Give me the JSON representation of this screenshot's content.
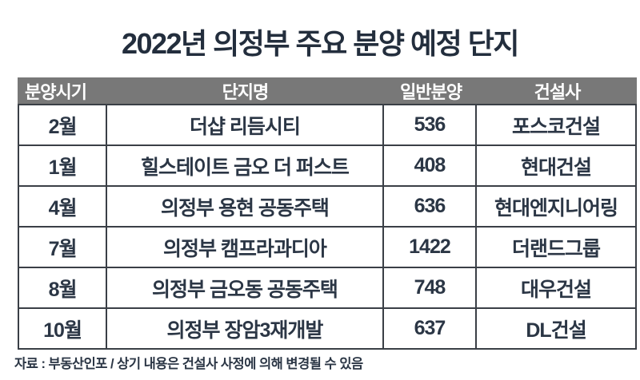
{
  "chart_data": {
    "type": "table",
    "title": "2022년 의정부 주요 분양 예정 단지",
    "columns": [
      "분양시기",
      "단지명",
      "일반분양",
      "건설사"
    ],
    "rows": [
      {
        "period": "2월",
        "complex": "더샵 리듬시티",
        "units": "536",
        "builder": "포스코건설"
      },
      {
        "period": "1월",
        "complex": "힐스테이트 금오 더 퍼스트",
        "units": "408",
        "builder": "현대건설"
      },
      {
        "period": "4월",
        "complex": "의정부 용현 공동주택",
        "units": "636",
        "builder": "현대엔지니어링"
      },
      {
        "period": "7월",
        "complex": "의정부 캠프라과디아",
        "units": "1422",
        "builder": "더랜드그룹"
      },
      {
        "period": "8월",
        "complex": "의정부 금오동 공동주택",
        "units": "748",
        "builder": "대우건설"
      },
      {
        "period": "10월",
        "complex": "의정부 장암3재개발",
        "units": "637",
        "builder": "DL건설"
      }
    ]
  },
  "footer": {
    "source_note": "자료 : 부동산인포 / 상기 내용은 건설사 사정에 의해 변경될 수 있음"
  },
  "colors": {
    "title_text": "#232e3d",
    "header_bg": "#787878",
    "header_text": "#ffffff",
    "cell_text": "#2b3645",
    "border": "#3a3f46",
    "background": "#ffffff"
  }
}
